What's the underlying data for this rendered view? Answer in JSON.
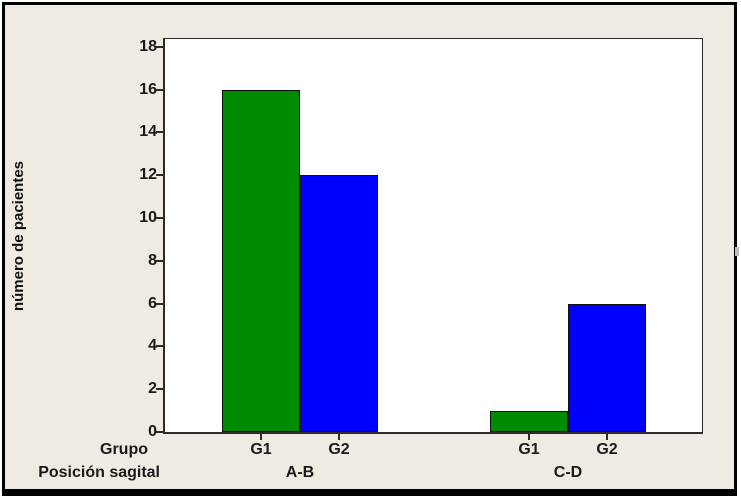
{
  "window": {
    "background_color": "#EFEBE2",
    "frame_color": "#000000",
    "plot_background": "#FFFFFF"
  },
  "chart_data": {
    "type": "bar",
    "title": "",
    "ylabel": "número de pacientes",
    "xlabel": "",
    "ylim": [
      0,
      18
    ],
    "ytick_step": 2,
    "yticks": [
      18,
      16,
      14,
      12,
      10,
      8,
      6,
      4,
      2,
      0
    ],
    "grid": false,
    "legend_position": "none",
    "axis_row_labels": {
      "group": "Grupo",
      "category": "Posición sagital"
    },
    "categories": [
      "A-B",
      "C-D"
    ],
    "series": [
      {
        "name": "G1",
        "color": "#008B00",
        "values": [
          16,
          1
        ]
      },
      {
        "name": "G2",
        "color": "#0000FF",
        "values": [
          12,
          6
        ]
      }
    ]
  }
}
